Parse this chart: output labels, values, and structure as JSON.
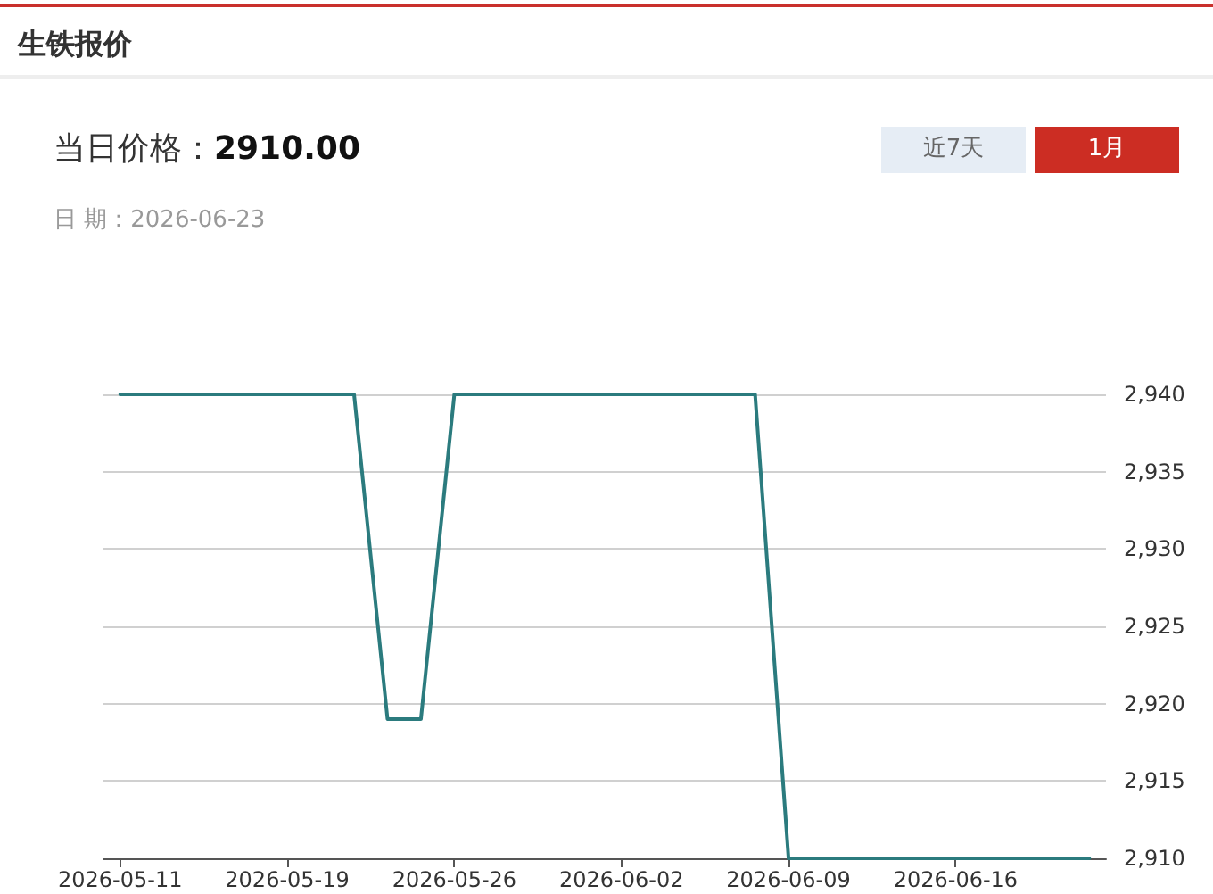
{
  "chart_data": {
    "type": "line",
    "title": "生铁报价",
    "annotations": [
      "当日价格：",
      "2910.00",
      "日 期：2026-06-23",
      "近7天",
      "1月"
    ],
    "categories": [
      "2026-05-11",
      null,
      null,
      null,
      null,
      "2026-05-19",
      null,
      null,
      null,
      null,
      "2026-05-26",
      null,
      null,
      null,
      null,
      "2026-06-02",
      null,
      null,
      null,
      null,
      "2026-06-09",
      null,
      null,
      null,
      null,
      "2026-06-16",
      null,
      null,
      null,
      null
    ],
    "values": [
      2940,
      2940,
      2940,
      2940,
      2940,
      2940,
      2940,
      2940,
      2919,
      2919,
      2940,
      2940,
      2940,
      2940,
      2940,
      2940,
      2940,
      2940,
      2940,
      2940,
      2910,
      2910,
      2910,
      2910,
      2910,
      2910,
      2910,
      2910,
      2910,
      2910
    ],
    "color": "#2b7b7e",
    "ylim": [
      2910,
      2940
    ],
    "yticks": [
      {
        "value": 2910,
        "label": "2,910"
      },
      {
        "value": 2915,
        "label": "2,915"
      },
      {
        "value": 2920,
        "label": "2,920"
      },
      {
        "value": 2925,
        "label": "2,925"
      },
      {
        "value": 2930,
        "label": "2,930"
      },
      {
        "value": 2935,
        "label": "2,935"
      },
      {
        "value": 2940,
        "label": "2,940"
      }
    ],
    "grid": "y",
    "marker": "none",
    "line_style": "solid"
  }
}
